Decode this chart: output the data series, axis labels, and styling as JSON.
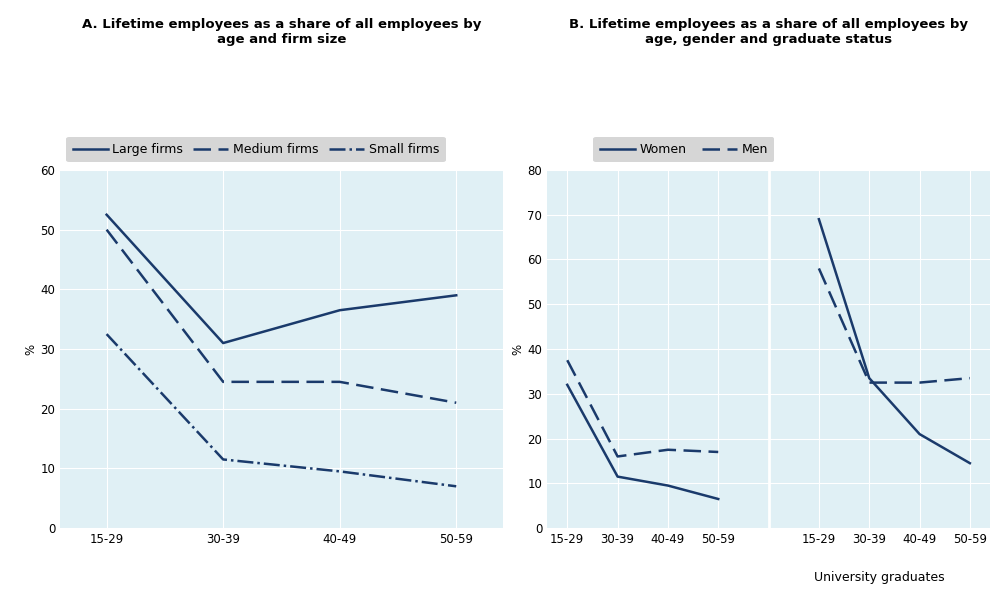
{
  "panel_a_title": "A. Lifetime employees as a share of all employees by\nage and firm size",
  "panel_b_title": "B. Lifetime employees as a share of all employees by\nage, gender and graduate status",
  "panel_a_xticks": [
    "15-29",
    "30-39",
    "40-49",
    "50-59"
  ],
  "panel_a_ylabel": "%",
  "panel_a_ylim": [
    0,
    60
  ],
  "panel_a_yticks": [
    0,
    10,
    20,
    30,
    40,
    50,
    60
  ],
  "panel_a_large_firms": [
    52.5,
    31.0,
    36.5,
    39.0
  ],
  "panel_a_medium_firms": [
    50.0,
    24.5,
    24.5,
    21.0
  ],
  "panel_a_small_firms": [
    32.5,
    11.5,
    9.5,
    7.0
  ],
  "panel_b_ylabel": "%",
  "panel_b_ylim": [
    0,
    80
  ],
  "panel_b_yticks": [
    0,
    10,
    20,
    30,
    40,
    50,
    60,
    70,
    80
  ],
  "panel_b_xticks": [
    "15-29",
    "30-39",
    "40-49",
    "50-59",
    "15-29",
    "30-39",
    "40-49",
    "50-59"
  ],
  "panel_b_women_junior": [
    32.0,
    11.5,
    9.5,
    6.5
  ],
  "panel_b_men_junior": [
    37.5,
    16.0,
    17.5,
    17.0
  ],
  "panel_b_women_university": [
    69.0,
    33.5,
    21.0,
    14.5
  ],
  "panel_b_men_university": [
    58.0,
    32.5,
    32.5,
    33.5
  ],
  "line_color": "#1a3a6b",
  "bg_color": "#e0f0f5",
  "legend_bg": "#cccccc",
  "grid_color": "#ffffff",
  "title_fontsize": 9.5,
  "legend_fontsize": 9,
  "tick_fontsize": 8.5,
  "sublabel_fontsize": 9,
  "linewidth": 1.8
}
